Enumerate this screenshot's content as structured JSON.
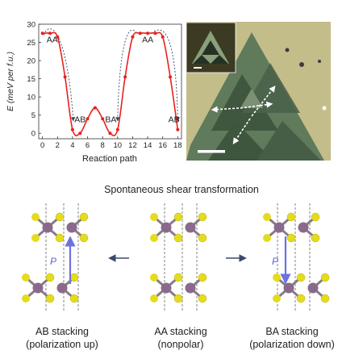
{
  "energy_plot": {
    "ylabel": "E (meV per f.u.)",
    "xlabel": "Reaction path",
    "x_ticks": [
      "0",
      "2",
      "4",
      "6",
      "8",
      "10",
      "12",
      "14",
      "16",
      "18"
    ],
    "y_ticks": [
      "0",
      "5",
      "10",
      "15",
      "20",
      "25",
      "30"
    ],
    "point_labels": [
      "AA",
      "AB",
      "BA",
      "AA",
      "AB"
    ],
    "colors": {
      "curve": "#e8211d",
      "guide": "#3a4a6b"
    }
  },
  "chart_data": {
    "type": "line",
    "xlabel": "Reaction path",
    "ylabel": "E (meV per f.u.)",
    "xlim": [
      -0.5,
      18.5
    ],
    "ylim": [
      -1.5,
      30
    ],
    "series": [
      {
        "x": [
          0,
          1,
          2,
          3,
          4,
          5,
          6,
          7,
          8,
          9,
          10,
          11,
          12,
          13,
          14,
          15,
          16,
          17,
          18
        ],
        "y": [
          27.5,
          27.5,
          26.5,
          15.5,
          1,
          0,
          4,
          7,
          4,
          0,
          1,
          15.5,
          26.5,
          27.5,
          27.5,
          27.5,
          26.5,
          15.5,
          1
        ]
      }
    ]
  },
  "micrograph": {
    "background": "#c5c08c",
    "flake": "#4f6b52"
  },
  "caption": "Spontaneous shear transformation",
  "structures": [
    {
      "label_line1": "AB stacking",
      "label_line2": "(polarization up)",
      "arrow_label": "P"
    },
    {
      "label_line1": "AA stacking",
      "label_line2": "(nonpolar)"
    },
    {
      "label_line1": "BA stacking",
      "label_line2": "(polarization down)",
      "arrow_label": "P"
    }
  ],
  "colors": {
    "metal_atom": "#8a6a8c",
    "chalcogen_atom": "#e4dc1c",
    "bond": "#8a7a86",
    "polarization_arrow": "#6c72e0",
    "transform_arrow": "#3a4a6b"
  }
}
